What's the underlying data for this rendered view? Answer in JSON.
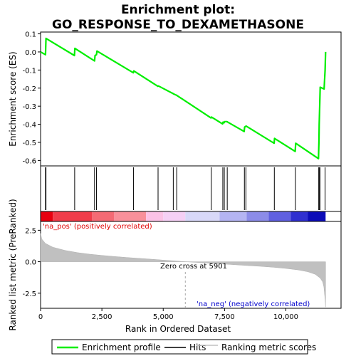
{
  "chart_data": {
    "type": "line",
    "title": "Enrichment plot:\nGO_RESPONSE_TO_DEXAMETHASONE",
    "title_lines": [
      "Enrichment plot:",
      "GO_RESPONSE_TO_DEXAMETHASONE"
    ],
    "es_panel": {
      "ylabel": "Enrichment score (ES)",
      "ylim": [
        -0.63,
        0.11
      ],
      "yticks": [
        0.1,
        0.0,
        -0.1,
        -0.2,
        -0.3,
        -0.4,
        -0.5,
        -0.6
      ],
      "ytick_labels": [
        "0.1",
        "0.0",
        "-0.1",
        "-0.2",
        "-0.3",
        "-0.4",
        "-0.5",
        "-0.6"
      ],
      "grid": false,
      "series": [
        {
          "name": "Enrichment profile",
          "color": "#00ee00",
          "points": [
            [
              0,
              0.0
            ],
            [
              200,
              -0.015
            ],
            [
              220,
              0.075
            ],
            [
              1380,
              -0.02
            ],
            [
              1400,
              0.02
            ],
            [
              2200,
              -0.05
            ],
            [
              2220,
              -0.02
            ],
            [
              2280,
              -0.015
            ],
            [
              2300,
              0.005
            ],
            [
              3780,
              -0.115
            ],
            [
              3800,
              -0.105
            ],
            [
              4780,
              -0.19
            ],
            [
              4800,
              -0.188
            ],
            [
              5400,
              -0.23
            ],
            [
              5420,
              -0.232
            ],
            [
              5550,
              -0.24
            ],
            [
              6950,
              -0.365
            ],
            [
              6970,
              -0.36
            ],
            [
              7420,
              -0.398
            ],
            [
              7440,
              -0.388
            ],
            [
              7480,
              -0.392
            ],
            [
              7500,
              -0.385
            ],
            [
              7600,
              -0.385
            ],
            [
              7620,
              -0.387
            ],
            [
              8300,
              -0.44
            ],
            [
              8320,
              -0.415
            ],
            [
              8380,
              -0.41
            ],
            [
              9520,
              -0.505
            ],
            [
              9540,
              -0.478
            ],
            [
              10380,
              -0.55
            ],
            [
              10400,
              -0.505
            ],
            [
              11330,
              -0.59
            ],
            [
              11350,
              -0.49
            ],
            [
              11360,
              -0.4
            ],
            [
              11380,
              -0.3
            ],
            [
              11400,
              -0.195
            ],
            [
              11560,
              -0.205
            ],
            [
              11600,
              -0.1
            ],
            [
              11620,
              0.0
            ]
          ]
        }
      ]
    },
    "hits": [
      200,
      220,
      1390,
      2200,
      2280,
      3790,
      4790,
      5410,
      5550,
      6960,
      7430,
      7490,
      7610,
      8310,
      8370,
      9530,
      10390,
      11340,
      11370,
      11390,
      11600
    ],
    "rank_metric_panel": {
      "ylabel": "Ranked list metric (PreRanked)",
      "ylim": [
        -3.7,
        3.2
      ],
      "yticks": [
        2.5,
        0.0,
        -2.5
      ],
      "ytick_labels": [
        "2.5",
        "0.0",
        "-2.5"
      ],
      "fill_color": "#c0c0c0",
      "series": [
        {
          "name": "Ranking metric scores",
          "points": [
            [
              0,
              2.25
            ],
            [
              50,
              1.8
            ],
            [
              200,
              1.45
            ],
            [
              500,
              1.15
            ],
            [
              1000,
              0.9
            ],
            [
              1500,
              0.72
            ],
            [
              2000,
              0.6
            ],
            [
              2500,
              0.5
            ],
            [
              3000,
              0.42
            ],
            [
              3500,
              0.34
            ],
            [
              4000,
              0.27
            ],
            [
              4500,
              0.2
            ],
            [
              5000,
              0.13
            ],
            [
              5500,
              0.06
            ],
            [
              5901,
              0.0
            ],
            [
              6500,
              -0.07
            ],
            [
              7000,
              -0.13
            ],
            [
              7500,
              -0.19
            ],
            [
              8000,
              -0.25
            ],
            [
              8500,
              -0.31
            ],
            [
              9000,
              -0.37
            ],
            [
              9500,
              -0.44
            ],
            [
              10000,
              -0.53
            ],
            [
              10500,
              -0.65
            ],
            [
              10900,
              -0.8
            ],
            [
              11200,
              -1.0
            ],
            [
              11400,
              -1.3
            ],
            [
              11500,
              -1.6
            ],
            [
              11550,
              -2.0
            ],
            [
              11600,
              -3.0
            ],
            [
              11620,
              -3.6
            ]
          ]
        }
      ],
      "zero_cross_label": "Zero cross at 5901",
      "zero_cross_x": 5901,
      "pos_label": "'na_pos' (positively correlated)",
      "neg_label": "'na_neg' (negatively correlated)"
    },
    "xaxis": {
      "label": "Rank in Ordered Dataset",
      "xlim": [
        0,
        12250
      ],
      "xticks": [
        0,
        2500,
        5000,
        7500,
        10000
      ],
      "xtick_labels": [
        "0",
        "2,500",
        "5,000",
        "7,500",
        "10,000"
      ],
      "max_rank": 11620
    },
    "heat_bar": {
      "colors": [
        "#e8000f",
        "#f03c4a",
        "#f46a74",
        "#f8909a",
        "#fbc2e6",
        "#f5d0f5",
        "#d8d8f8",
        "#b4b4f2",
        "#8c8ce8",
        "#6060e0",
        "#3030d0",
        "#0c0cb8"
      ],
      "breaks": [
        0,
        500,
        2100,
        3000,
        4300,
        5000,
        5900,
        7300,
        8400,
        9300,
        10200,
        10900,
        11620
      ]
    },
    "legend": {
      "placement": "bottom",
      "items": [
        {
          "label": "Enrichment profile",
          "color": "#00ee00",
          "style": "line-thick"
        },
        {
          "label": "Hits",
          "color": "#000000",
          "style": "line"
        },
        {
          "label": "Ranking metric scores",
          "color": "#c0c0c0",
          "style": "line"
        }
      ]
    }
  }
}
